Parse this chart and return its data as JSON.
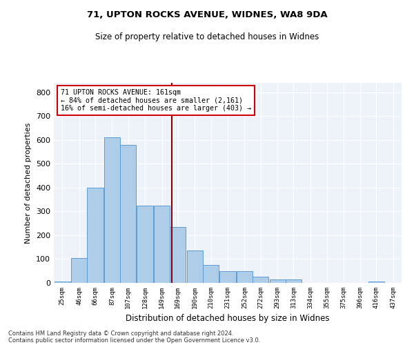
{
  "title1": "71, UPTON ROCKS AVENUE, WIDNES, WA8 9DA",
  "title2": "Size of property relative to detached houses in Widnes",
  "xlabel": "Distribution of detached houses by size in Widnes",
  "ylabel": "Number of detached properties",
  "footnote1": "Contains HM Land Registry data © Crown copyright and database right 2024.",
  "footnote2": "Contains public sector information licensed under the Open Government Licence v3.0.",
  "annotation_line1": "71 UPTON ROCKS AVENUE: 161sqm",
  "annotation_line2": "← 84% of detached houses are smaller (2,161)",
  "annotation_line3": "16% of semi-detached houses are larger (403) →",
  "bar_color": "#aecde8",
  "bar_edge_color": "#5b9bd5",
  "vline_color": "#8b0000",
  "vline_x": 161,
  "background_color": "#eef3fa",
  "categories": [
    25,
    46,
    66,
    87,
    107,
    128,
    149,
    169,
    190,
    210,
    231,
    252,
    272,
    293,
    313,
    334,
    355,
    375,
    396,
    416,
    437
  ],
  "bar_labels": [
    "25sqm",
    "46sqm",
    "66sqm",
    "87sqm",
    "107sqm",
    "128sqm",
    "149sqm",
    "169sqm",
    "190sqm",
    "210sqm",
    "231sqm",
    "252sqm",
    "272sqm",
    "293sqm",
    "313sqm",
    "334sqm",
    "355sqm",
    "375sqm",
    "396sqm",
    "416sqm",
    "437sqm"
  ],
  "values": [
    5,
    105,
    400,
    610,
    580,
    325,
    325,
    235,
    135,
    75,
    50,
    50,
    25,
    15,
    15,
    0,
    0,
    0,
    0,
    5,
    0
  ],
  "ylim": [
    0,
    840
  ],
  "yticks": [
    0,
    100,
    200,
    300,
    400,
    500,
    600,
    700,
    800
  ],
  "bin_width": 21,
  "fig_width": 6.0,
  "fig_height": 5.0,
  "dpi": 100
}
